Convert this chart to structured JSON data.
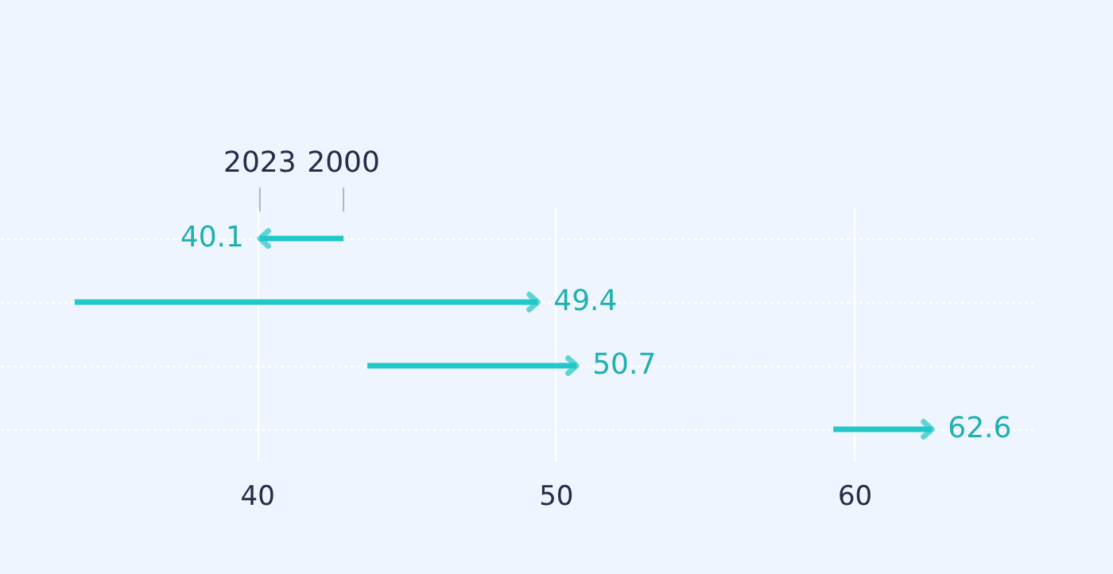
{
  "chart_data": {
    "type": "bar",
    "orientation": "horizontal",
    "categories": [
      null,
      null,
      null,
      null
    ],
    "base": [
      42.9,
      33.9,
      43.7,
      59.3
    ],
    "values": [
      -2.8,
      15.5,
      7.0,
      3.3
    ],
    "value_labels": [
      "40.1",
      "49.4",
      "50.7",
      "62.6"
    ],
    "color": "#22c7c7",
    "xlim": [
      31.4,
      66.0
    ],
    "xticks": [
      40,
      50,
      60
    ],
    "grid": true,
    "tick_labels": "x",
    "annotations": [
      "2023",
      "2000"
    ]
  }
}
